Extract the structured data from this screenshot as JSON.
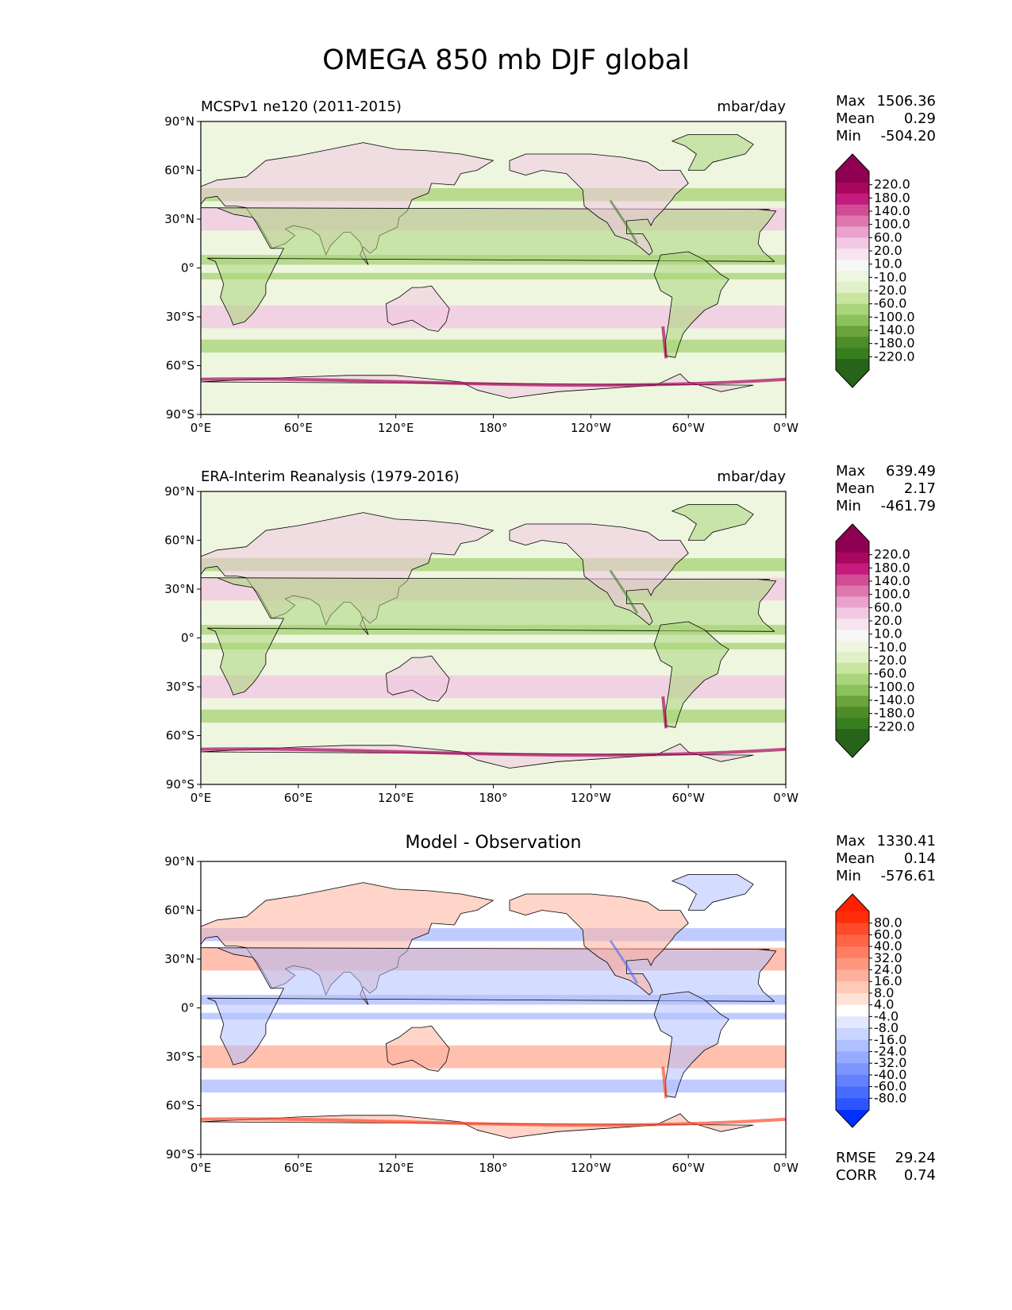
{
  "title": "OMEGA 850 mb DJF global",
  "axes": {
    "lat_ticks": [
      "90°N",
      "60°N",
      "30°N",
      "0°",
      "30°S",
      "60°S",
      "90°S"
    ],
    "lon_ticks": [
      "0°E",
      "60°E",
      "120°E",
      "180°",
      "120°W",
      "60°W",
      "0°W"
    ]
  },
  "panels": [
    {
      "left_label": "MCSPv1 ne120 (2011-2015)",
      "right_label": "mbar/day",
      "center_label": "",
      "stats": [
        {
          "name": "Max",
          "value": "1506.36"
        },
        {
          "name": "Mean",
          "value": "0.29"
        },
        {
          "name": "Min",
          "value": "-504.20"
        }
      ],
      "colorbar": {
        "labels": [
          "220.0",
          "180.0",
          "140.0",
          "100.0",
          "60.0",
          "20.0",
          "10.0",
          "-10.0",
          "-20.0",
          "-60.0",
          "-100.0",
          "-140.0",
          "-180.0",
          "-220.0"
        ],
        "colors": [
          "#8e0152",
          "#a8075d",
          "#c51b7d",
          "#d24c95",
          "#de77ae",
          "#eaa2cd",
          "#f1c9e2",
          "#f7e4ef",
          "#f7f7f7",
          "#eef6df",
          "#e0f0c8",
          "#c8e6a0",
          "#aad57a",
          "#8cc25c",
          "#6ba33c",
          "#4d8c28",
          "#357f1f",
          "#276419"
        ],
        "arrow_top": "#8e0152",
        "arrow_bottom": "#276419"
      },
      "extra_stats": []
    },
    {
      "left_label": "ERA-Interim Reanalysis (1979-2016)",
      "right_label": "mbar/day",
      "center_label": "",
      "stats": [
        {
          "name": "Max",
          "value": "639.49"
        },
        {
          "name": "Mean",
          "value": "2.17"
        },
        {
          "name": "Min",
          "value": "-461.79"
        }
      ],
      "colorbar": {
        "labels": [
          "220.0",
          "180.0",
          "140.0",
          "100.0",
          "60.0",
          "20.0",
          "10.0",
          "-10.0",
          "-20.0",
          "-60.0",
          "-100.0",
          "-140.0",
          "-180.0",
          "-220.0"
        ],
        "colors": [
          "#8e0152",
          "#a8075d",
          "#c51b7d",
          "#d24c95",
          "#de77ae",
          "#eaa2cd",
          "#f1c9e2",
          "#f7e4ef",
          "#f7f7f7",
          "#eef6df",
          "#e0f0c8",
          "#c8e6a0",
          "#aad57a",
          "#8cc25c",
          "#6ba33c",
          "#4d8c28",
          "#357f1f",
          "#276419"
        ],
        "arrow_top": "#8e0152",
        "arrow_bottom": "#276419"
      },
      "extra_stats": []
    },
    {
      "left_label": "",
      "right_label": "",
      "center_label": "Model - Observation",
      "stats": [
        {
          "name": "Max",
          "value": "1330.41"
        },
        {
          "name": "Mean",
          "value": "0.14"
        },
        {
          "name": "Min",
          "value": "-576.61"
        }
      ],
      "colorbar": {
        "labels": [
          "80.0",
          "60.0",
          "40.0",
          "32.0",
          "24.0",
          "16.0",
          "8.0",
          "4.0",
          "-4.0",
          "-8.0",
          "-16.0",
          "-24.0",
          "-32.0",
          "-40.0",
          "-60.0",
          "-80.0"
        ],
        "colors": [
          "#ff2d0a",
          "#ff4a2a",
          "#ff6446",
          "#ff7d62",
          "#ff977f",
          "#ffb09c",
          "#ffc9b8",
          "#ffe2d6",
          "#ffffff",
          "#e2e8ff",
          "#c9d4ff",
          "#b0bfff",
          "#97aaff",
          "#7d95ff",
          "#6480ff",
          "#4a6bff",
          "#2d55ff"
        ],
        "arrow_top": "#ff2000",
        "arrow_bottom": "#0030ff"
      },
      "extra_stats": [
        {
          "name": "RMSE",
          "value": "29.24"
        },
        {
          "name": "CORR",
          "value": "0.74"
        }
      ]
    }
  ]
}
